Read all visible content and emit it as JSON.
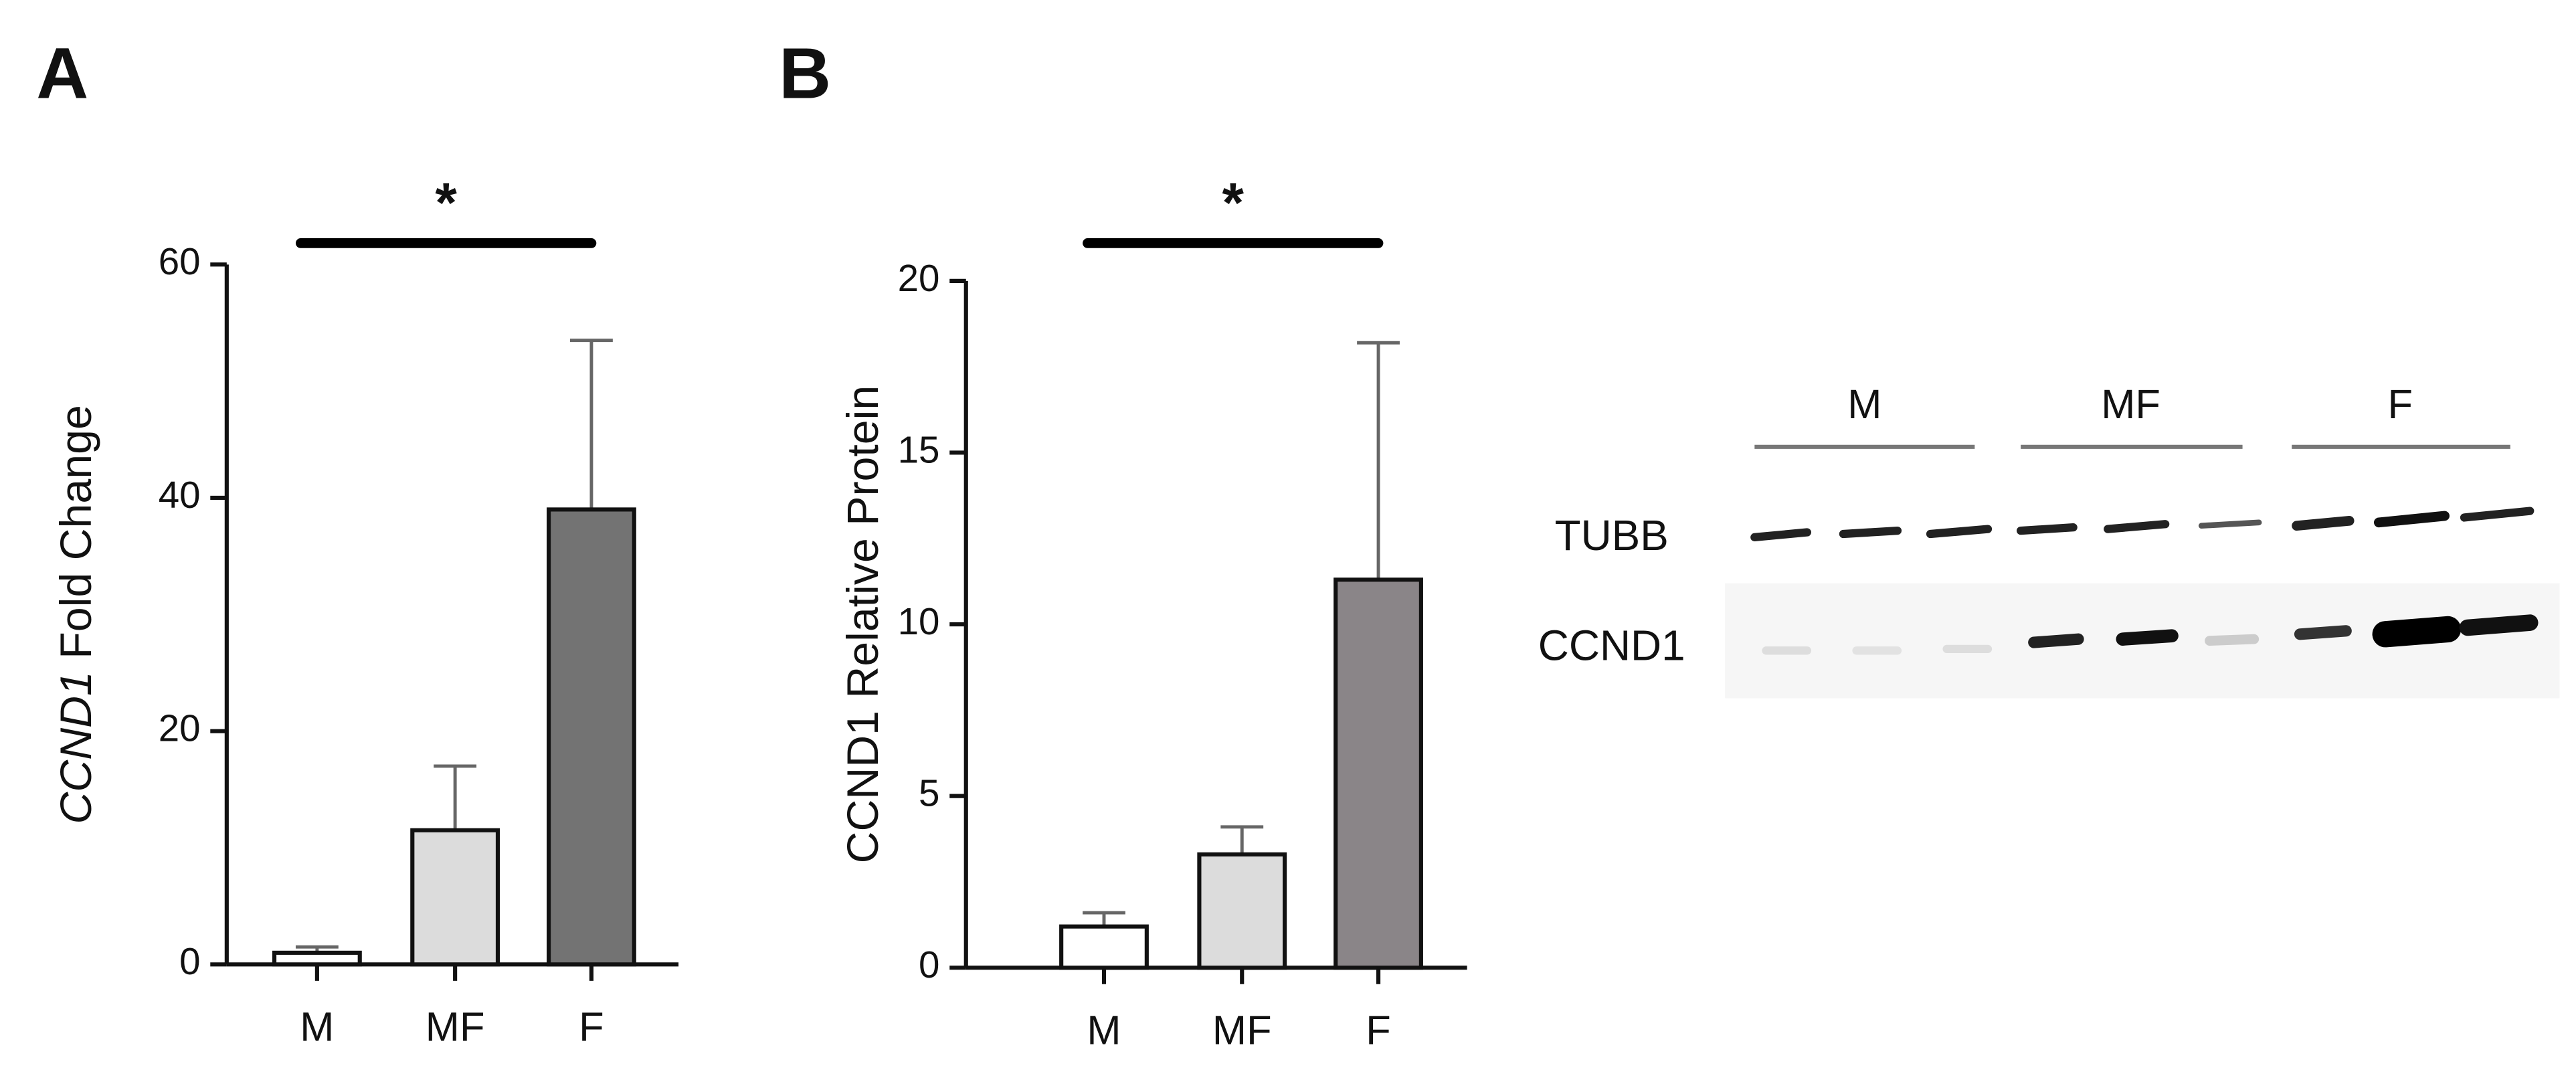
{
  "chart_data": [
    {
      "type": "bar",
      "panel_label": "A",
      "ylabel": {
        "italic": "CCND1",
        "text": "Fold Change"
      },
      "categories": [
        "M",
        "MF",
        "F"
      ],
      "values": [
        1,
        11.5,
        39
      ],
      "errors": [
        0.5,
        5.5,
        14.5
      ],
      "colors": [
        "#ffffff",
        "#dcdcdc",
        "#737373"
      ],
      "ylim": [
        0,
        60
      ],
      "yticks": [
        0,
        20,
        40,
        60
      ],
      "annotation": "*"
    },
    {
      "type": "bar",
      "panel_label": "B",
      "ylabel": {
        "text": "CCND1 Relative Protein"
      },
      "categories": [
        "M",
        "MF",
        "F"
      ],
      "values": [
        1.2,
        3.3,
        11.3
      ],
      "errors": [
        0.4,
        0.8,
        6.9
      ],
      "colors": [
        "#ffffff",
        "#dcdcdc",
        "#8a8588"
      ],
      "ylim": [
        0,
        20
      ],
      "yticks": [
        0,
        5,
        10,
        15,
        20
      ],
      "annotation": "*"
    }
  ],
  "blot": {
    "groups": [
      "M",
      "MF",
      "F"
    ],
    "rows": [
      "TUBB",
      "CCND1"
    ]
  }
}
